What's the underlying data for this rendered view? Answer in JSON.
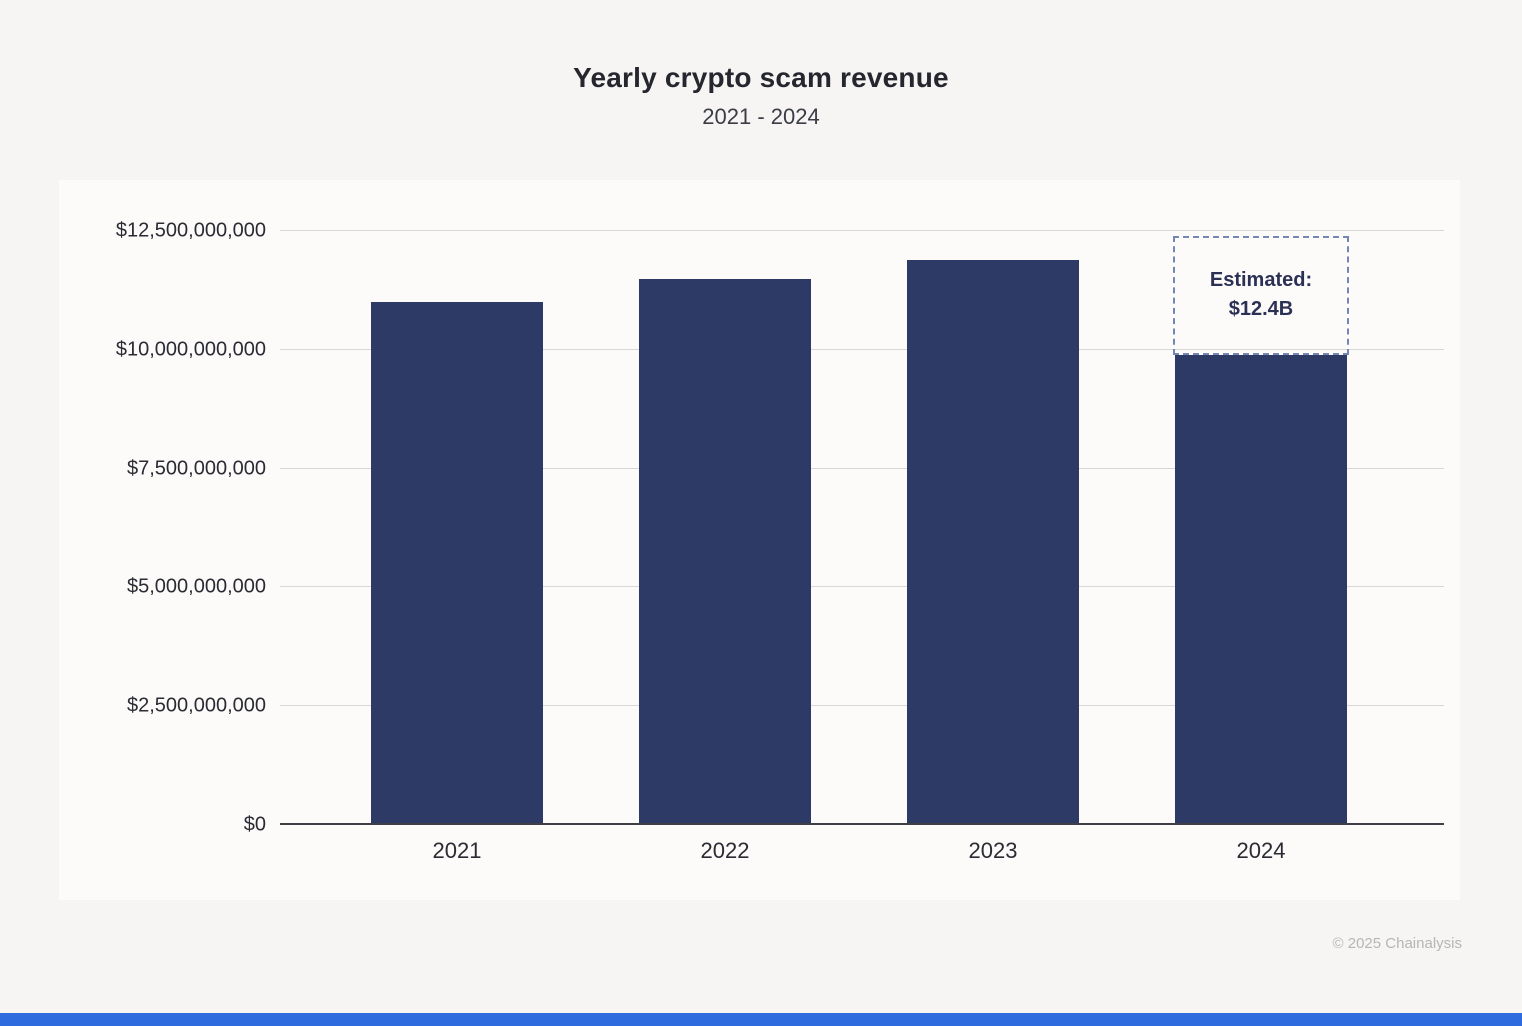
{
  "chart_data": {
    "type": "bar",
    "title": "Yearly crypto scam revenue",
    "subtitle": "2021 - 2024",
    "categories": [
      "2021",
      "2022",
      "2023",
      "2024"
    ],
    "values": [
      11000000000,
      11500000000,
      11900000000,
      9900000000
    ],
    "estimated": {
      "category": "2024",
      "value": 12400000000,
      "label_line1": "Estimated:",
      "label_line2": "$12.4B"
    },
    "xlabel": "",
    "ylabel": "",
    "ylim": [
      0,
      12500000000
    ],
    "ytick_values": [
      0,
      2500000000,
      5000000000,
      7500000000,
      10000000000,
      12500000000
    ],
    "ytick_labels": [
      "$0",
      "$2,500,000,000",
      "$5,000,000,000",
      "$7,500,000,000",
      "$10,000,000,000",
      "$12,500,000,000"
    ],
    "grid": true,
    "legend": "none"
  },
  "colors": {
    "bar": "#2d3a66",
    "estimated_border": "#7386b6",
    "accent_bar": "#2e6bdf",
    "background": "#f6f5f4",
    "panel": "#fcfbfa"
  },
  "footer": {
    "copyright": "© 2025 Chainalysis"
  }
}
